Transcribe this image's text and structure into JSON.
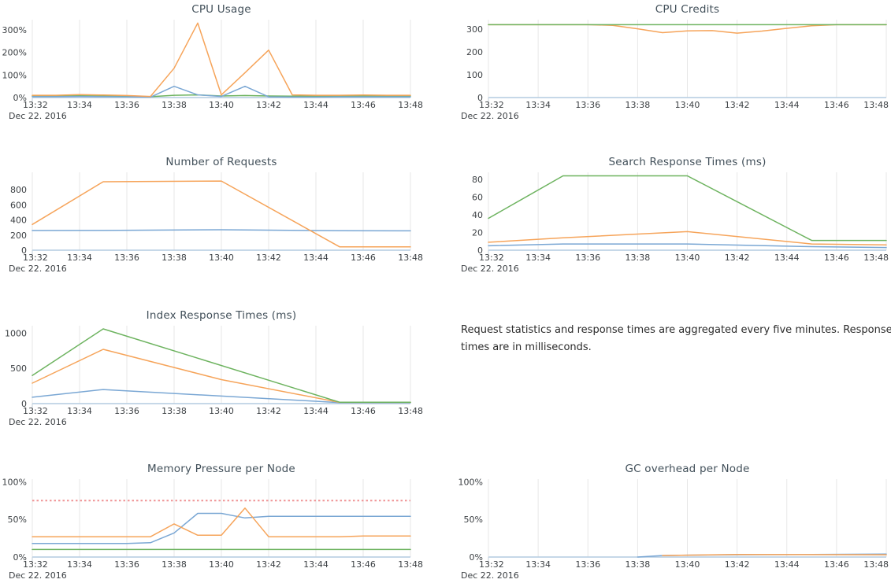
{
  "x_axis": {
    "tick_labels": [
      "13:32",
      "13:34",
      "13:36",
      "13:38",
      "13:40",
      "13:42",
      "13:44",
      "13:46",
      "13:48"
    ],
    "date_label": "Dec 22. 2016",
    "minutes_range": [
      0,
      16
    ]
  },
  "note": {
    "text": "Request statistics and response times are aggregated every five minutes. Response times are in milliseconds."
  },
  "palette": {
    "blue": "#7aa7d4",
    "orange": "#f6a45a",
    "green": "#6db35f",
    "threshold_red": "#ef9294",
    "grid": "#e7e7e7",
    "zeroline": "#b4cbe0",
    "tick_text": "#3c4044",
    "title_text": "#42505a"
  },
  "chart_data": [
    {
      "id": "cpu-usage",
      "type": "line",
      "title": "CPU Usage",
      "ylim": [
        0,
        345
      ],
      "y_ticks": [
        {
          "value": 0,
          "label": "0%"
        },
        {
          "value": 100,
          "label": "100%"
        },
        {
          "value": 200,
          "label": "200%"
        },
        {
          "value": 300,
          "label": "300%"
        }
      ],
      "series": [
        {
          "name": "green",
          "color": "#6db35f",
          "points": [
            [
              0,
              7
            ],
            [
              1,
              7
            ],
            [
              2,
              8
            ],
            [
              3,
              7
            ],
            [
              4,
              6
            ],
            [
              5,
              4
            ],
            [
              6,
              10
            ],
            [
              7,
              12
            ],
            [
              8,
              7
            ],
            [
              9,
              9
            ],
            [
              10,
              7
            ],
            [
              11,
              6
            ],
            [
              12,
              6
            ],
            [
              13,
              7
            ],
            [
              14,
              7
            ],
            [
              15,
              7
            ],
            [
              16,
              7
            ]
          ]
        },
        {
          "name": "blue",
          "color": "#7aa7d4",
          "points": [
            [
              0,
              4
            ],
            [
              1,
              4
            ],
            [
              2,
              5
            ],
            [
              3,
              4
            ],
            [
              4,
              3
            ],
            [
              5,
              2
            ],
            [
              6,
              50
            ],
            [
              7,
              12
            ],
            [
              8,
              5
            ],
            [
              9,
              50
            ],
            [
              10,
              3
            ],
            [
              11,
              2
            ],
            [
              12,
              2
            ],
            [
              13,
              3
            ],
            [
              14,
              3
            ],
            [
              15,
              3
            ],
            [
              16,
              3
            ]
          ]
        },
        {
          "name": "orange",
          "color": "#f6a45a",
          "points": [
            [
              0,
              10
            ],
            [
              1,
              10
            ],
            [
              2,
              13
            ],
            [
              3,
              11
            ],
            [
              4,
              9
            ],
            [
              5,
              5
            ],
            [
              6,
              130
            ],
            [
              7,
              330
            ],
            [
              8,
              12
            ],
            [
              9,
              110
            ],
            [
              10,
              210
            ],
            [
              11,
              12
            ],
            [
              12,
              10
            ],
            [
              13,
              10
            ],
            [
              14,
              11
            ],
            [
              15,
              10
            ],
            [
              16,
              10
            ]
          ]
        }
      ]
    },
    {
      "id": "cpu-credits",
      "type": "line",
      "title": "CPU Credits",
      "ylim": [
        0,
        342
      ],
      "y_ticks": [
        {
          "value": 0,
          "label": "0"
        },
        {
          "value": 100,
          "label": "100"
        },
        {
          "value": 200,
          "label": "200"
        },
        {
          "value": 300,
          "label": "300"
        }
      ],
      "series": [
        {
          "name": "orange",
          "color": "#f6a45a",
          "points": [
            [
              0,
              320
            ],
            [
              4,
              320
            ],
            [
              5,
              317
            ],
            [
              6,
              302
            ],
            [
              7,
              285
            ],
            [
              8,
              293
            ],
            [
              9,
              294
            ],
            [
              10,
              283
            ],
            [
              11,
              292
            ],
            [
              12,
              304
            ],
            [
              13,
              315
            ],
            [
              14,
              320
            ],
            [
              16,
              320
            ]
          ]
        },
        {
          "name": "green",
          "color": "#6db35f",
          "points": [
            [
              0,
              320
            ],
            [
              16,
              320
            ]
          ]
        }
      ]
    },
    {
      "id": "number-of-requests",
      "type": "line",
      "title": "Number of Requests",
      "ylim": [
        0,
        1030
      ],
      "y_ticks": [
        {
          "value": 0,
          "label": "0"
        },
        {
          "value": 200,
          "label": "200"
        },
        {
          "value": 400,
          "label": "400"
        },
        {
          "value": 600,
          "label": "600"
        },
        {
          "value": 800,
          "label": "800"
        }
      ],
      "series": [
        {
          "name": "blue",
          "color": "#7aa7d4",
          "points": [
            [
              0,
              260
            ],
            [
              3,
              261
            ],
            [
              8,
              271
            ],
            [
              13,
              257
            ],
            [
              16,
              256
            ]
          ]
        },
        {
          "name": "orange",
          "color": "#f6a45a",
          "points": [
            [
              0,
              340
            ],
            [
              3,
              905
            ],
            [
              8,
              915
            ],
            [
              13,
              45
            ],
            [
              16,
              45
            ]
          ]
        }
      ]
    },
    {
      "id": "search-response-times",
      "type": "line",
      "title": "Search Response Times (ms)",
      "ylim": [
        0,
        88
      ],
      "y_ticks": [
        {
          "value": 0,
          "label": "0"
        },
        {
          "value": 20,
          "label": "20"
        },
        {
          "value": 40,
          "label": "40"
        },
        {
          "value": 60,
          "label": "60"
        },
        {
          "value": 80,
          "label": "80"
        }
      ],
      "series": [
        {
          "name": "blue",
          "color": "#7aa7d4",
          "points": [
            [
              0,
              5
            ],
            [
              3,
              7
            ],
            [
              8,
              7
            ],
            [
              13,
              4
            ],
            [
              16,
              3
            ]
          ]
        },
        {
          "name": "orange",
          "color": "#f6a45a",
          "points": [
            [
              0,
              9
            ],
            [
              3,
              14
            ],
            [
              8,
              21
            ],
            [
              13,
              7
            ],
            [
              16,
              6
            ]
          ]
        },
        {
          "name": "green",
          "color": "#6db35f",
          "points": [
            [
              0,
              36
            ],
            [
              3,
              84
            ],
            [
              8,
              84
            ],
            [
              13,
              11
            ],
            [
              16,
              11
            ]
          ]
        }
      ]
    },
    {
      "id": "index-response-times",
      "type": "line",
      "title": "Index Response Times (ms)",
      "ylim": [
        0,
        1105
      ],
      "y_ticks": [
        {
          "value": 0,
          "label": "0"
        },
        {
          "value": 500,
          "label": "500"
        },
        {
          "value": 1000,
          "label": "1000"
        }
      ],
      "series": [
        {
          "name": "blue",
          "color": "#7aa7d4",
          "points": [
            [
              0,
              90
            ],
            [
              3,
              200
            ],
            [
              13,
              15
            ],
            [
              16,
              15
            ]
          ]
        },
        {
          "name": "orange",
          "color": "#f6a45a",
          "points": [
            [
              0,
              290
            ],
            [
              3,
              770
            ],
            [
              8,
              340
            ],
            [
              13,
              18
            ],
            [
              16,
              18
            ]
          ]
        },
        {
          "name": "green",
          "color": "#6db35f",
          "points": [
            [
              0,
              400
            ],
            [
              3,
              1060
            ],
            [
              13,
              20
            ],
            [
              16,
              20
            ]
          ]
        }
      ]
    },
    {
      "id": "memory-pressure-per-node",
      "type": "line",
      "title": "Memory Pressure per Node",
      "ylim": [
        0,
        103.5
      ],
      "y_ticks": [
        {
          "value": 0,
          "label": "0%"
        },
        {
          "value": 50,
          "label": "50%"
        },
        {
          "value": 100,
          "label": "100%"
        }
      ],
      "threshold": {
        "value": 75,
        "color": "#ef9294",
        "style": "dotted"
      },
      "series": [
        {
          "name": "green",
          "color": "#6db35f",
          "points": [
            [
              0,
              10
            ],
            [
              16,
              10
            ]
          ]
        },
        {
          "name": "blue",
          "color": "#7aa7d4",
          "points": [
            [
              0,
              18
            ],
            [
              1,
              18
            ],
            [
              2,
              18
            ],
            [
              3,
              18
            ],
            [
              4,
              18
            ],
            [
              5,
              19
            ],
            [
              6,
              32
            ],
            [
              7,
              58
            ],
            [
              8,
              58
            ],
            [
              9,
              52
            ],
            [
              10,
              54
            ],
            [
              11,
              54
            ],
            [
              12,
              54
            ],
            [
              13,
              54
            ],
            [
              14,
              54
            ],
            [
              15,
              54
            ],
            [
              16,
              54
            ]
          ]
        },
        {
          "name": "orange",
          "color": "#f6a45a",
          "points": [
            [
              0,
              27
            ],
            [
              1,
              27
            ],
            [
              2,
              27
            ],
            [
              3,
              27
            ],
            [
              4,
              27
            ],
            [
              5,
              27
            ],
            [
              6,
              44
            ],
            [
              7,
              29
            ],
            [
              8,
              29
            ],
            [
              9,
              65
            ],
            [
              10,
              27
            ],
            [
              11,
              27
            ],
            [
              12,
              27
            ],
            [
              13,
              27
            ],
            [
              14,
              28
            ],
            [
              15,
              28
            ],
            [
              16,
              28
            ]
          ]
        }
      ]
    },
    {
      "id": "gc-overhead-per-node",
      "type": "line",
      "title": "GC overhead per Node",
      "ylim": [
        0,
        103.5
      ],
      "y_ticks": [
        {
          "value": 0,
          "label": "0%"
        },
        {
          "value": 50,
          "label": "50%"
        },
        {
          "value": 100,
          "label": "100%"
        }
      ],
      "series": [
        {
          "name": "blue",
          "color": "#7aa7d4",
          "points": [
            [
              6,
              0
            ],
            [
              7,
              2
            ],
            [
              8,
              2.5
            ],
            [
              10,
              3
            ],
            [
              13,
              3.5
            ],
            [
              16,
              4
            ]
          ]
        },
        {
          "name": "orange",
          "color": "#f6a45a",
          "points": [
            [
              7,
              2
            ],
            [
              8,
              2.5
            ],
            [
              10,
              3.5
            ],
            [
              16,
              3
            ]
          ]
        }
      ]
    }
  ]
}
